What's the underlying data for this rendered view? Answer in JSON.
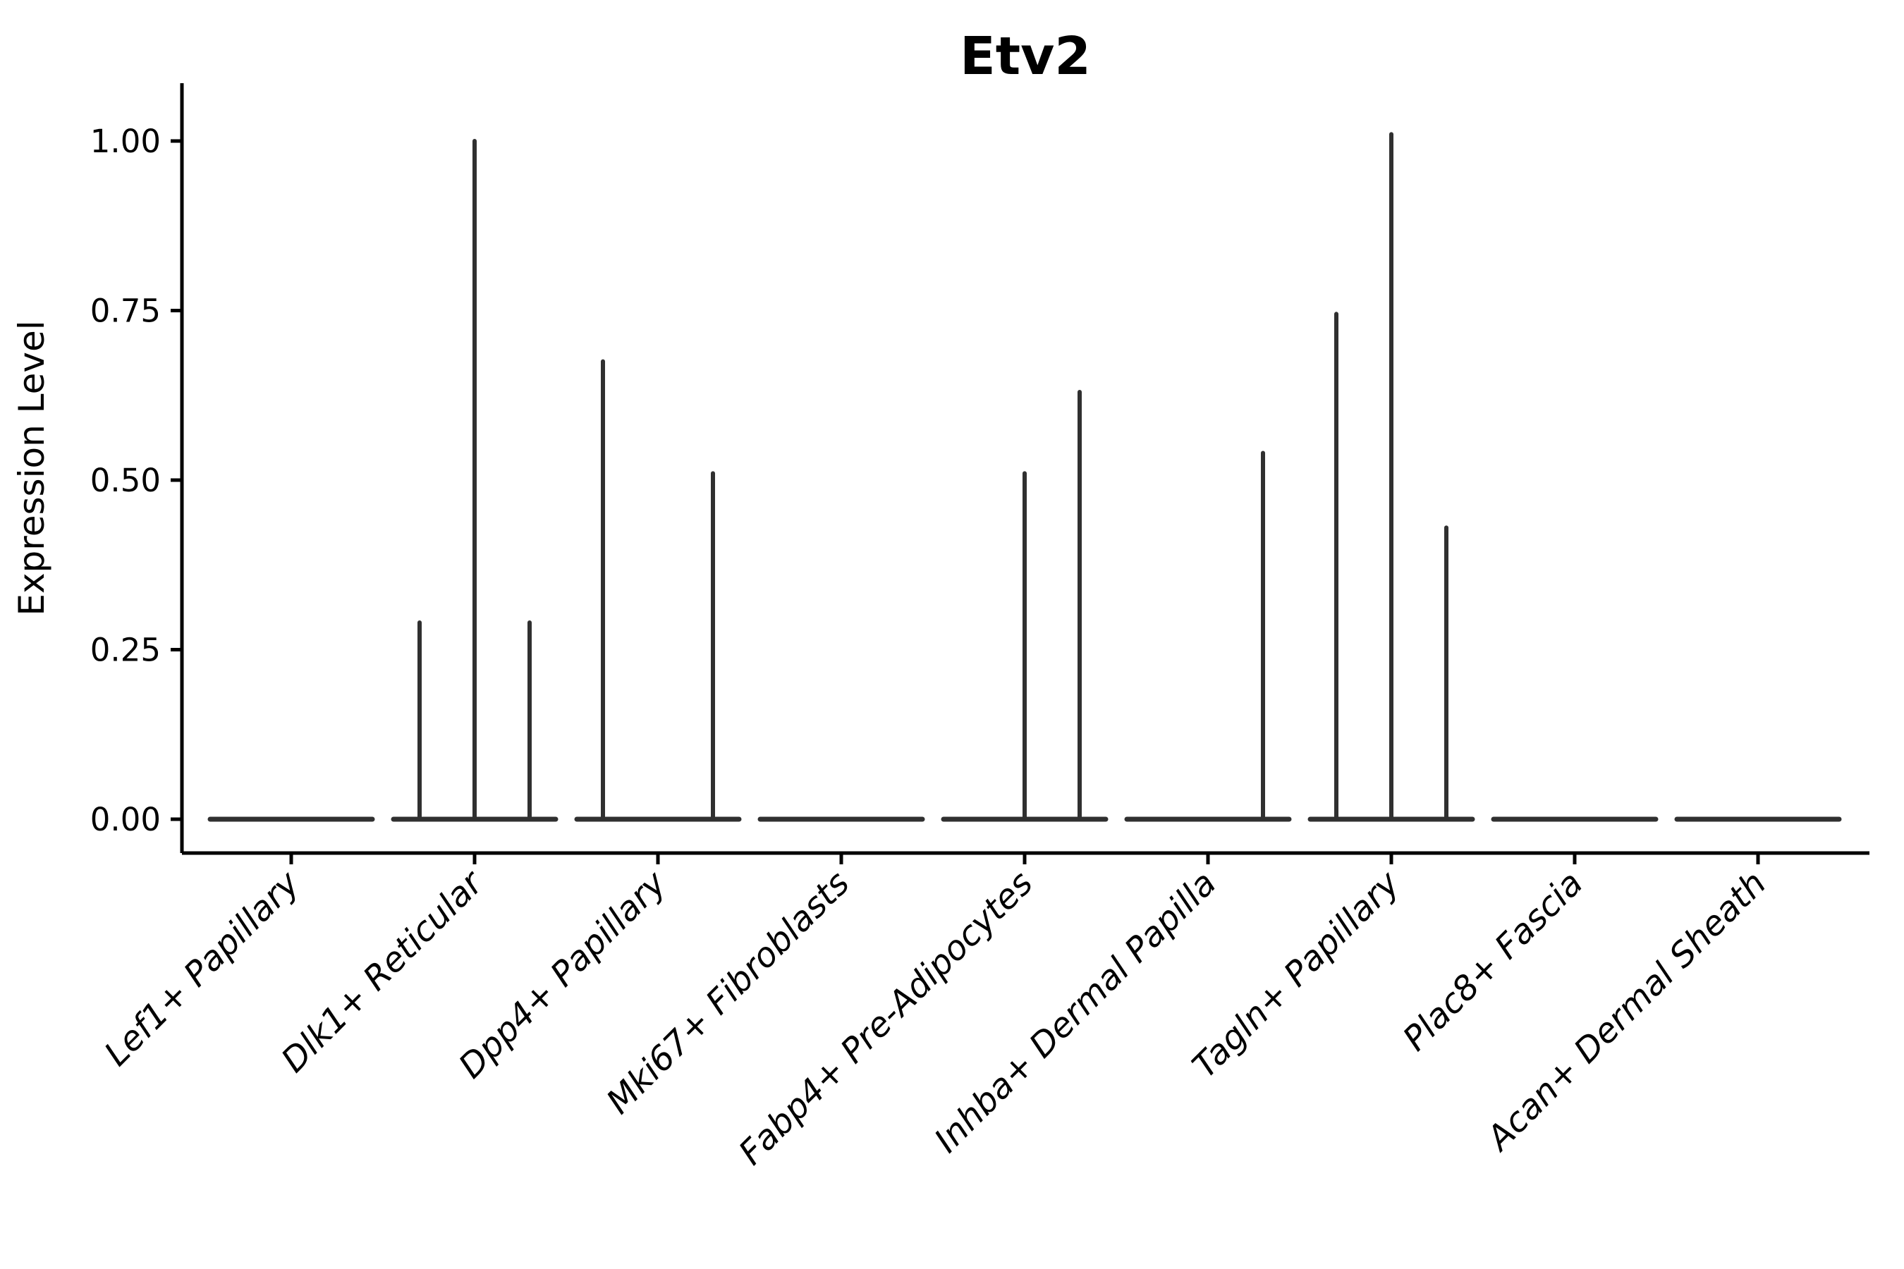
{
  "chart_data": {
    "type": "violin",
    "title": "Etv2",
    "ylabel": "Expression Level",
    "xlabel": "",
    "legend": "none",
    "grid": false,
    "ylim": [
      0,
      1.085
    ],
    "y_ticks": {
      "values": [
        0,
        0.25,
        0.5,
        0.75,
        1.0
      ],
      "labels": [
        "0.00",
        "0.25",
        "0.50",
        "0.75",
        "1.00"
      ]
    },
    "x_tick_label_angle_deg": 45,
    "categories": [
      "Lef1+ Papillary",
      "Dlk1+ Reticular",
      "Dpp4+ Papillary",
      "Mki67+ Fibroblasts",
      "Fabp4+ Pre-Adipocytes",
      "Inhba+ Dermal Papilla",
      "Tagln+ Papillary",
      "Plac8+ Fascia",
      "Acan+ Dermal Sheath"
    ],
    "violins": [
      {
        "category": "Lef1+ Papillary",
        "baseline_value": 0,
        "spikes": []
      },
      {
        "category": "Dlk1+ Reticular",
        "baseline_value": 0,
        "spikes": [
          {
            "offset": -0.3,
            "value": 0.29
          },
          {
            "offset": 0,
            "value": 1.0
          },
          {
            "offset": 0.3,
            "value": 0.29
          }
        ]
      },
      {
        "category": "Dpp4+ Papillary",
        "baseline_value": 0,
        "spikes": [
          {
            "offset": -0.3,
            "value": 0.675
          },
          {
            "offset": 0.3,
            "value": 0.51
          }
        ]
      },
      {
        "category": "Mki67+ Fibroblasts",
        "baseline_value": 0,
        "spikes": []
      },
      {
        "category": "Fabp4+ Pre-Adipocytes",
        "baseline_value": 0,
        "spikes": [
          {
            "offset": 0,
            "value": 0.51
          },
          {
            "offset": 0.3,
            "value": 0.63
          }
        ]
      },
      {
        "category": "Inhba+ Dermal Papilla",
        "baseline_value": 0,
        "spikes": [
          {
            "offset": 0.3,
            "value": 0.54
          }
        ]
      },
      {
        "category": "Tagln+ Papillary",
        "baseline_value": 0,
        "spikes": [
          {
            "offset": -0.3,
            "value": 0.745
          },
          {
            "offset": 0,
            "value": 1.01
          },
          {
            "offset": 0.3,
            "value": 0.43
          }
        ]
      },
      {
        "category": "Plac8+ Fascia",
        "baseline_value": 0,
        "spikes": []
      },
      {
        "category": "Acan+ Dermal Sheath",
        "baseline_value": 0,
        "spikes": []
      }
    ],
    "colors": {
      "background": "#ffffff",
      "axis": "#000000",
      "text": "#000000",
      "violin_stroke": "#303030"
    }
  }
}
